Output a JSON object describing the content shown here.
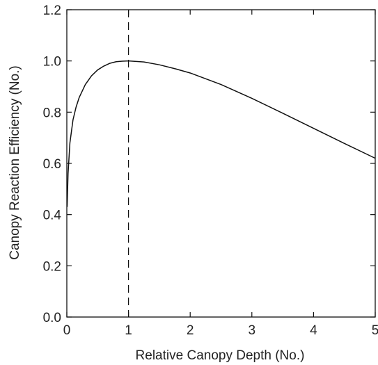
{
  "chart_data": {
    "type": "line",
    "title": "",
    "xlabel": "Relative Canopy Depth (No.)",
    "ylabel": "Canopy Reaction Efficiency (No.)",
    "xlim": [
      0,
      5
    ],
    "ylim": [
      0,
      1.2
    ],
    "x_ticks": [
      "0",
      "1",
      "2",
      "3",
      "4",
      "5"
    ],
    "y_ticks": [
      "0.0",
      "0.2",
      "0.4",
      "0.6",
      "0.8",
      "1.0",
      "1.2"
    ],
    "grid": false,
    "legend": "none",
    "series": [
      {
        "x": [
          0.005,
          0.02,
          0.05,
          0.1,
          0.15,
          0.2,
          0.3,
          0.4,
          0.5,
          0.6,
          0.7,
          0.8,
          0.9,
          1.0,
          1.25,
          1.5,
          1.75,
          2.0,
          2.5,
          3.0,
          3.5,
          4.0,
          4.5,
          5.0
        ],
        "values": [
          0.43,
          0.56,
          0.68,
          0.77,
          0.82,
          0.857,
          0.908,
          0.942,
          0.965,
          0.98,
          0.991,
          0.997,
          0.999,
          1.0,
          0.996,
          0.985,
          0.97,
          0.953,
          0.908,
          0.854,
          0.796,
          0.737,
          0.678,
          0.62
        ]
      }
    ],
    "reference_line": {
      "orientation": "vertical",
      "x": 1,
      "style": "dashed"
    },
    "colors": {
      "line": "#111111",
      "axis": "#111111",
      "text": "#222222"
    }
  }
}
